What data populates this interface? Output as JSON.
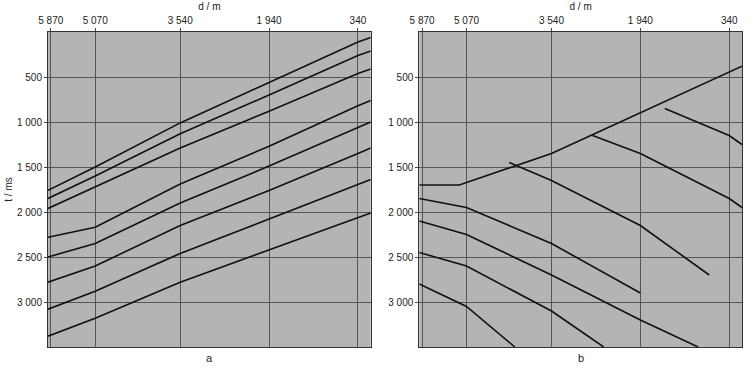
{
  "chart_data": [
    {
      "type": "line",
      "title": "a",
      "x_label": "d / m",
      "y_label": "t / ms",
      "xlim": [
        5920,
        110
      ],
      "ylim": [
        3500,
        0
      ],
      "xticks": [
        {
          "value": 5870,
          "label": "5 870"
        },
        {
          "value": 5070,
          "label": "5 070"
        },
        {
          "value": 3540,
          "label": "3 540"
        },
        {
          "value": 1940,
          "label": "1 940"
        },
        340
      ],
      "yticks": [
        500,
        {
          "value": 1000,
          "label": "1 000"
        },
        {
          "value": 1500,
          "label": "1 500"
        },
        {
          "value": 2000,
          "label": "2 000"
        },
        {
          "value": 2500,
          "label": "2 500"
        },
        {
          "value": 3000,
          "label": "3 000"
        }
      ],
      "grid": true,
      "color": "#111111",
      "series": [
        {
          "x": [
            5920,
            5070,
            3540,
            1940,
            340,
            110
          ],
          "values": [
            1760,
            1500,
            1010,
            560,
            110,
            60
          ]
        },
        {
          "x": [
            5920,
            5070,
            3540,
            1940,
            340,
            110
          ],
          "values": [
            1850,
            1600,
            1130,
            700,
            260,
            210
          ]
        },
        {
          "x": [
            5920,
            5070,
            3540,
            1940,
            340,
            110
          ],
          "values": [
            1960,
            1720,
            1290,
            880,
            460,
            410
          ]
        },
        {
          "x": [
            5920,
            5070,
            3540,
            1940,
            340,
            110
          ],
          "values": [
            2280,
            2170,
            1690,
            1270,
            820,
            760
          ]
        },
        {
          "x": [
            5920,
            5070,
            3540,
            1940,
            340,
            110
          ],
          "values": [
            2500,
            2350,
            1900,
            1490,
            1060,
            1000
          ]
        },
        {
          "x": [
            5920,
            5070,
            3540,
            1940,
            340,
            110
          ],
          "values": [
            2780,
            2600,
            2150,
            1760,
            1350,
            1290
          ]
        },
        {
          "x": [
            5920,
            5070,
            3540,
            1940,
            340,
            110
          ],
          "values": [
            3080,
            2880,
            2460,
            2080,
            1700,
            1640
          ]
        },
        {
          "x": [
            5920,
            5070,
            3540,
            1940,
            340,
            110
          ],
          "values": [
            3380,
            3180,
            2780,
            2420,
            2060,
            2010
          ]
        }
      ]
    },
    {
      "type": "line",
      "title": "b",
      "x_label": "d / m",
      "xlim": [
        5920,
        110
      ],
      "ylim": [
        3500,
        0
      ],
      "xticks": [
        {
          "value": 5870,
          "label": "5 870"
        },
        {
          "value": 5070,
          "label": "5 070"
        },
        {
          "value": 3540,
          "label": "3 540"
        },
        {
          "value": 1940,
          "label": "1 940"
        },
        340
      ],
      "yticks": [
        500,
        {
          "value": 1000,
          "label": "1 000"
        },
        {
          "value": 1500,
          "label": "1 500"
        },
        {
          "value": 2000,
          "label": "2 000"
        },
        {
          "value": 2500,
          "label": "2 500"
        },
        {
          "value": 3000,
          "label": "3 000"
        }
      ],
      "grid": true,
      "color": "#111111",
      "series": [
        {
          "x": [
            5920,
            5200,
            3540,
            1940,
            340,
            110
          ],
          "values": [
            1700,
            1700,
            1350,
            900,
            450,
            380
          ]
        },
        {
          "x": [
            5920,
            5070,
            3540,
            1940
          ],
          "values": [
            1850,
            1950,
            2350,
            2900
          ]
        },
        {
          "x": [
            5920,
            5070,
            3540,
            1940,
            900
          ],
          "values": [
            2100,
            2250,
            2700,
            3200,
            3500
          ]
        },
        {
          "x": [
            5920,
            5070,
            3540,
            2600
          ],
          "values": [
            2450,
            2600,
            3100,
            3500
          ]
        },
        {
          "x": [
            5920,
            5070,
            4200
          ],
          "values": [
            2800,
            3050,
            3500
          ]
        },
        {
          "x": [
            4300,
            3540,
            1940,
            700
          ],
          "values": [
            1450,
            1650,
            2150,
            2700
          ]
        },
        {
          "x": [
            2800,
            1940,
            340,
            110
          ],
          "values": [
            1150,
            1350,
            1850,
            1950
          ]
        },
        {
          "x": [
            1500,
            340,
            110
          ],
          "values": [
            850,
            1150,
            1250
          ]
        }
      ]
    }
  ]
}
